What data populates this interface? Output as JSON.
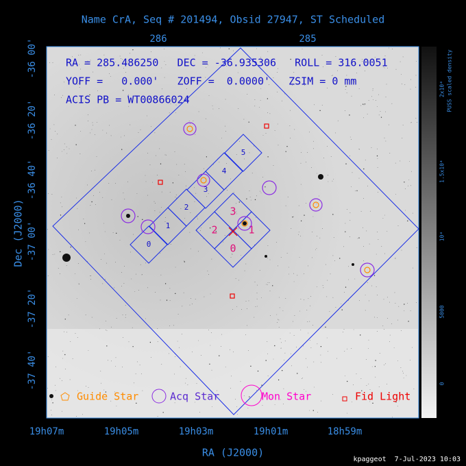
{
  "title": "Name CrA, Seq # 201494, Obsid 27947, ST Scheduled",
  "top_axis": {
    "labels": [
      "286",
      "285"
    ]
  },
  "left_axis": {
    "title": "Dec (J2000)",
    "labels": [
      "-36 00'",
      "-36 20'",
      "-36 40'",
      "-37 00'",
      "-37 20'",
      "-37 40'"
    ]
  },
  "bottom_axis": {
    "title": "RA (J2000)",
    "labels": [
      "19h07m",
      "19h05m",
      "19h03m",
      "19h01m",
      "18h59m"
    ]
  },
  "info": {
    "lines": [
      "RA = 285.486250   DEC = -36.935306   ROLL = 316.0051",
      "YOFF =   0.000'   ZOFF =  0.0000'   ZSIM = 0 mm",
      "ACIS PB = WT00866024"
    ]
  },
  "chips": {
    "acis_s": [
      "0",
      "1",
      "2",
      "3",
      "4",
      "5"
    ],
    "aim": [
      "3",
      "1",
      "0",
      "2"
    ]
  },
  "legend": [
    "Guide Star",
    "Acq Star",
    "Mon Star",
    "Fid Light"
  ],
  "colorbar": {
    "title": "PUSS scaled density",
    "labels": [
      "2x10⁴",
      "1.5x10⁴",
      "10⁴",
      "5000",
      "0"
    ]
  },
  "footer": "kpaggeot  7-Jul-2023 10:03"
}
